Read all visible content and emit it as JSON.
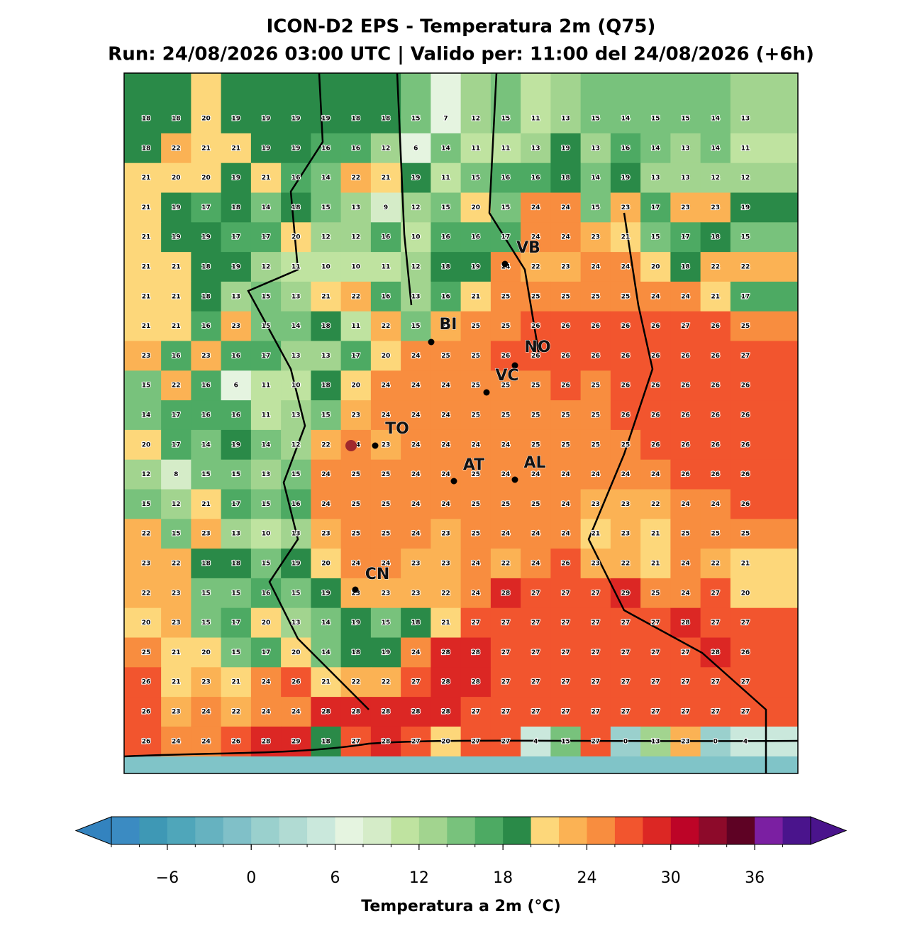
{
  "header": {
    "title": "ICON-D2 EPS - Temperatura 2m (Q75)",
    "subtitle": "Run: 24/08/2026 03:00 UTC | Valido per: 11:00 del 24/08/2026 (+6h)"
  },
  "map": {
    "values": [
      [
        18,
        18,
        20,
        19,
        19,
        19,
        19,
        18,
        18,
        15,
        7,
        12,
        15,
        11,
        13,
        15,
        14,
        15,
        15,
        14,
        13
      ],
      [
        18,
        22,
        21,
        21,
        19,
        19,
        16,
        16,
        12,
        6,
        14,
        11,
        11,
        13,
        19,
        13,
        16,
        14,
        13,
        14,
        11
      ],
      [
        21,
        20,
        20,
        19,
        21,
        16,
        14,
        22,
        21,
        19,
        11,
        15,
        16,
        16,
        18,
        14,
        19,
        13,
        13,
        12,
        12
      ],
      [
        21,
        19,
        17,
        18,
        14,
        18,
        15,
        13,
        9,
        12,
        15,
        20,
        15,
        24,
        24,
        15,
        23,
        17,
        23,
        23,
        19
      ],
      [
        21,
        19,
        19,
        17,
        17,
        20,
        12,
        12,
        16,
        10,
        16,
        16,
        17,
        24,
        24,
        23,
        21,
        15,
        17,
        18,
        15
      ],
      [
        21,
        21,
        18,
        19,
        12,
        11,
        10,
        10,
        11,
        12,
        18,
        19,
        24,
        22,
        23,
        24,
        24,
        20,
        18,
        22,
        22
      ],
      [
        21,
        21,
        18,
        13,
        15,
        13,
        21,
        22,
        16,
        13,
        16,
        21,
        25,
        25,
        25,
        25,
        25,
        24,
        24,
        21,
        17
      ],
      [
        21,
        21,
        16,
        23,
        15,
        14,
        18,
        11,
        22,
        15,
        23,
        25,
        25,
        26,
        26,
        26,
        26,
        26,
        27,
        26,
        25
      ],
      [
        23,
        16,
        23,
        16,
        17,
        13,
        13,
        17,
        20,
        24,
        25,
        25,
        26,
        26,
        26,
        26,
        26,
        26,
        26,
        26,
        27
      ],
      [
        15,
        22,
        16,
        6,
        11,
        10,
        18,
        20,
        24,
        24,
        24,
        25,
        25,
        25,
        26,
        25,
        26,
        26,
        26,
        26,
        26
      ],
      [
        14,
        17,
        16,
        16,
        11,
        13,
        15,
        23,
        24,
        24,
        24,
        25,
        25,
        25,
        25,
        25,
        26,
        26,
        26,
        26,
        26
      ],
      [
        20,
        17,
        14,
        19,
        14,
        12,
        22,
        24,
        23,
        24,
        24,
        24,
        24,
        25,
        25,
        25,
        25,
        26,
        26,
        26,
        26
      ],
      [
        12,
        8,
        15,
        15,
        13,
        15,
        24,
        25,
        25,
        24,
        24,
        25,
        24,
        24,
        24,
        24,
        24,
        24,
        26,
        26,
        26
      ],
      [
        15,
        12,
        21,
        17,
        15,
        16,
        24,
        25,
        25,
        24,
        24,
        25,
        25,
        25,
        24,
        23,
        23,
        22,
        24,
        24,
        26
      ],
      [
        22,
        15,
        23,
        13,
        10,
        13,
        23,
        25,
        25,
        24,
        23,
        25,
        24,
        24,
        24,
        21,
        23,
        21,
        25,
        25,
        25
      ],
      [
        23,
        22,
        18,
        18,
        15,
        19,
        20,
        24,
        24,
        23,
        23,
        24,
        22,
        24,
        26,
        23,
        22,
        21,
        24,
        22,
        21
      ],
      [
        22,
        23,
        15,
        15,
        16,
        15,
        19,
        23,
        23,
        23,
        22,
        24,
        28,
        27,
        27,
        27,
        29,
        25,
        24,
        27,
        20
      ],
      [
        20,
        23,
        15,
        17,
        20,
        13,
        14,
        19,
        15,
        18,
        21,
        27,
        27,
        27,
        27,
        27,
        27,
        27,
        28,
        27,
        27
      ],
      [
        25,
        21,
        20,
        15,
        17,
        20,
        14,
        18,
        19,
        24,
        28,
        28,
        27,
        27,
        27,
        27,
        27,
        27,
        27,
        28,
        26
      ],
      [
        26,
        21,
        23,
        21,
        24,
        26,
        21,
        22,
        22,
        27,
        28,
        28,
        27,
        27,
        27,
        27,
        27,
        27,
        27,
        27,
        27
      ],
      [
        26,
        23,
        24,
        22,
        24,
        24,
        28,
        28,
        28,
        28,
        28,
        27,
        27,
        27,
        27,
        27,
        27,
        27,
        27,
        27,
        27
      ],
      [
        26,
        24,
        24,
        26,
        28,
        29,
        18,
        27,
        28,
        27,
        20,
        27,
        27,
        4,
        15,
        27,
        0,
        13,
        23,
        0,
        4
      ]
    ],
    "cities": [
      "VB",
      "BI",
      "NO",
      "VC",
      "TO",
      "AT",
      "AL",
      "CN"
    ]
  },
  "colorbar": {
    "label": "Temperatura a 2m (°C)",
    "range": [
      -10,
      40
    ],
    "ticks": [
      {
        "value": -6,
        "label": "−6"
      },
      0,
      6,
      12,
      18,
      24,
      30,
      36
    ],
    "colors": [
      "#3b8bc2",
      "#3e98b5",
      "#4fa6ba",
      "#66b2c0",
      "#80c0c8",
      "#9ad0cd",
      "#b1dbd3",
      "#cae8dc",
      "#e5f4e0",
      "#d5ecc8",
      "#bfe3a0",
      "#a2d48f",
      "#78c27c",
      "#4daa63",
      "#2a8a48",
      "#fdd77a",
      "#fbb254",
      "#f88d3f",
      "#f2552e",
      "#dc2724",
      "#bd0427",
      "#8d0a2a",
      "#5e0224",
      "#7b1fa2",
      "#4a148c"
    ],
    "under_color": "#3383bf",
    "over_color": "#4a148c"
  }
}
